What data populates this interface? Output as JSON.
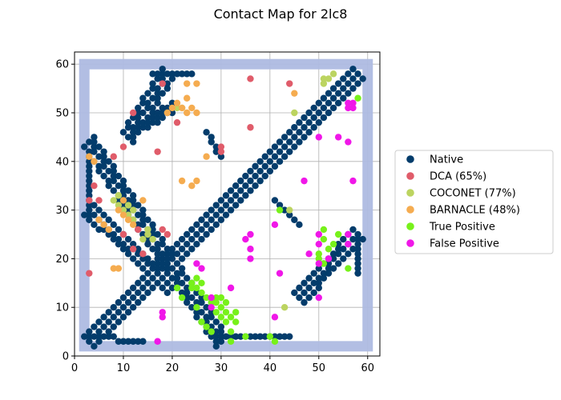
{
  "chart_data": {
    "type": "scatter",
    "title": "Contact Map for 2lc8",
    "xlabel": "",
    "ylabel": "",
    "xlim": [
      0,
      62.5
    ],
    "ylim": [
      0,
      62.5
    ],
    "xticks": [
      0,
      10,
      20,
      30,
      40,
      50,
      60
    ],
    "yticks": [
      0,
      10,
      20,
      30,
      40,
      50,
      60
    ],
    "grid": true,
    "legend_position": "right",
    "frame_box": {
      "min": 2,
      "max": 60,
      "color": "#aebbe2"
    },
    "series": [
      {
        "name": "Native",
        "color": "#033c6b",
        "regions": [
          {
            "kind": "diagonal",
            "from": [
              3,
              3
            ],
            "to": [
              58,
              58
            ],
            "width": 3
          },
          {
            "kind": "diagonal",
            "from": [
              3,
              44
            ],
            "to": [
              30,
              3
            ],
            "width": 3
          },
          {
            "kind": "diagonal",
            "from": [
              3,
              30
            ],
            "to": [
              20,
              14
            ],
            "width": 2
          },
          {
            "kind": "diagonal",
            "from": [
              11,
              45
            ],
            "to": [
              19,
              58
            ],
            "width": 2
          },
          {
            "kind": "diagonal",
            "from": [
              13,
              47
            ],
            "to": [
              20,
              51
            ],
            "width": 2
          },
          {
            "kind": "diagonal",
            "from": [
              27,
              46
            ],
            "to": [
              30,
              41
            ],
            "width": 1.5
          },
          {
            "kind": "diagonal",
            "from": [
              41,
              32
            ],
            "to": [
              46,
              27
            ],
            "width": 1.5
          },
          {
            "kind": "diagonal",
            "from": [
              46,
              12
            ],
            "to": [
              58,
              25
            ],
            "width": 2.5
          },
          {
            "kind": "diagonal",
            "from": [
              3,
              4
            ],
            "to": [
              14,
              3
            ],
            "width": 1.5
          },
          {
            "kind": "diagonal",
            "from": [
              30,
              4
            ],
            "to": [
              44,
              4
            ],
            "width": 1
          },
          {
            "kind": "diagonal",
            "from": [
              16,
              58
            ],
            "to": [
              24,
              58
            ],
            "width": 1
          },
          {
            "kind": "diagonal",
            "from": [
              2.5,
              42
            ],
            "to": [
              2.5,
              28
            ],
            "width": 1
          },
          {
            "kind": "diagonal",
            "from": [
              58,
              25
            ],
            "to": [
              58,
              17
            ],
            "width": 1
          }
        ]
      },
      {
        "name": "DCA (65%)",
        "color": "#e05c6a",
        "points": [
          [
            3,
            17
          ],
          [
            3,
            32
          ],
          [
            4,
            35
          ],
          [
            5,
            32
          ],
          [
            8,
            41
          ],
          [
            10,
            43
          ],
          [
            10,
            25
          ],
          [
            12,
            50
          ],
          [
            12,
            22
          ],
          [
            13,
            26
          ],
          [
            14,
            21
          ],
          [
            17,
            42
          ],
          [
            18,
            56
          ],
          [
            18,
            26
          ],
          [
            19,
            25
          ],
          [
            21,
            48
          ],
          [
            30,
            42
          ],
          [
            30,
            43
          ],
          [
            36,
            57
          ],
          [
            36,
            47
          ],
          [
            44,
            56
          ]
        ]
      },
      {
        "name": "COCONET (77%)",
        "color": "#bcd460",
        "points": [
          [
            8,
            32
          ],
          [
            9,
            33
          ],
          [
            9,
            31
          ],
          [
            10,
            30
          ],
          [
            11,
            31
          ],
          [
            11,
            29
          ],
          [
            12,
            30
          ],
          [
            12,
            28
          ],
          [
            14,
            24
          ],
          [
            15,
            25
          ],
          [
            15,
            26
          ],
          [
            16,
            24
          ],
          [
            21,
            51
          ],
          [
            22,
            51
          ],
          [
            44,
            30
          ],
          [
            45,
            50
          ],
          [
            51,
            56
          ],
          [
            51,
            57
          ],
          [
            52,
            57
          ],
          [
            53,
            58
          ],
          [
            43,
            10
          ]
        ]
      },
      {
        "name": "BARNACLE (48%)",
        "color": "#f5ac50",
        "points": [
          [
            3,
            41
          ],
          [
            4,
            40
          ],
          [
            5,
            28
          ],
          [
            6,
            27
          ],
          [
            7,
            26
          ],
          [
            8,
            18
          ],
          [
            9,
            18
          ],
          [
            9,
            30
          ],
          [
            10,
            29
          ],
          [
            10,
            32
          ],
          [
            11,
            28
          ],
          [
            12,
            27
          ],
          [
            14,
            32
          ],
          [
            19,
            50
          ],
          [
            20,
            51
          ],
          [
            21,
            52
          ],
          [
            22,
            51
          ],
          [
            22,
            36
          ],
          [
            23,
            53
          ],
          [
            23,
            50
          ],
          [
            23,
            56
          ],
          [
            24,
            51
          ],
          [
            24,
            35
          ],
          [
            25,
            56
          ],
          [
            25,
            50
          ],
          [
            25,
            36
          ],
          [
            27,
            41
          ],
          [
            45,
            54
          ]
        ]
      },
      {
        "name": "True Positive",
        "color": "#77f11a",
        "points": [
          [
            21,
            14
          ],
          [
            22,
            12
          ],
          [
            24,
            15
          ],
          [
            24,
            14
          ],
          [
            25,
            16
          ],
          [
            25,
            14
          ],
          [
            25,
            10
          ],
          [
            26,
            15
          ],
          [
            26,
            13
          ],
          [
            26,
            7
          ],
          [
            27,
            12
          ],
          [
            27,
            6
          ],
          [
            28,
            11
          ],
          [
            28,
            5
          ],
          [
            29,
            12
          ],
          [
            29,
            11
          ],
          [
            29,
            9
          ],
          [
            30,
            12
          ],
          [
            30,
            10
          ],
          [
            30,
            8
          ],
          [
            31,
            11
          ],
          [
            31,
            9
          ],
          [
            31,
            7
          ],
          [
            32,
            8
          ],
          [
            32,
            5
          ],
          [
            32,
            3
          ],
          [
            33,
            9
          ],
          [
            33,
            7
          ],
          [
            35,
            4
          ],
          [
            40,
            4
          ],
          [
            41,
            3
          ],
          [
            42,
            30
          ],
          [
            50,
            21
          ],
          [
            50,
            20
          ],
          [
            51,
            26
          ],
          [
            51,
            24
          ],
          [
            51,
            19
          ],
          [
            52,
            22
          ],
          [
            53,
            23
          ],
          [
            54,
            25
          ],
          [
            56,
            18
          ],
          [
            58,
            53
          ]
        ]
      },
      {
        "name": "False Positive",
        "color": "#f017e8",
        "points": [
          [
            17,
            3
          ],
          [
            18,
            9
          ],
          [
            18,
            8
          ],
          [
            25,
            19
          ],
          [
            26,
            18
          ],
          [
            28,
            12
          ],
          [
            28,
            10
          ],
          [
            32,
            14
          ],
          [
            35,
            24
          ],
          [
            36,
            25
          ],
          [
            36,
            22
          ],
          [
            36,
            20
          ],
          [
            41,
            27
          ],
          [
            41,
            8
          ],
          [
            42,
            17
          ],
          [
            47,
            36
          ],
          [
            48,
            21
          ],
          [
            50,
            45
          ],
          [
            50,
            25
          ],
          [
            50,
            23
          ],
          [
            50,
            19
          ],
          [
            50,
            12
          ],
          [
            52,
            20
          ],
          [
            54,
            45
          ],
          [
            56,
            52
          ],
          [
            56,
            51
          ],
          [
            56,
            44
          ],
          [
            56,
            25
          ],
          [
            56,
            23
          ],
          [
            57,
            52
          ],
          [
            57,
            51
          ],
          [
            57,
            36
          ]
        ]
      }
    ]
  }
}
